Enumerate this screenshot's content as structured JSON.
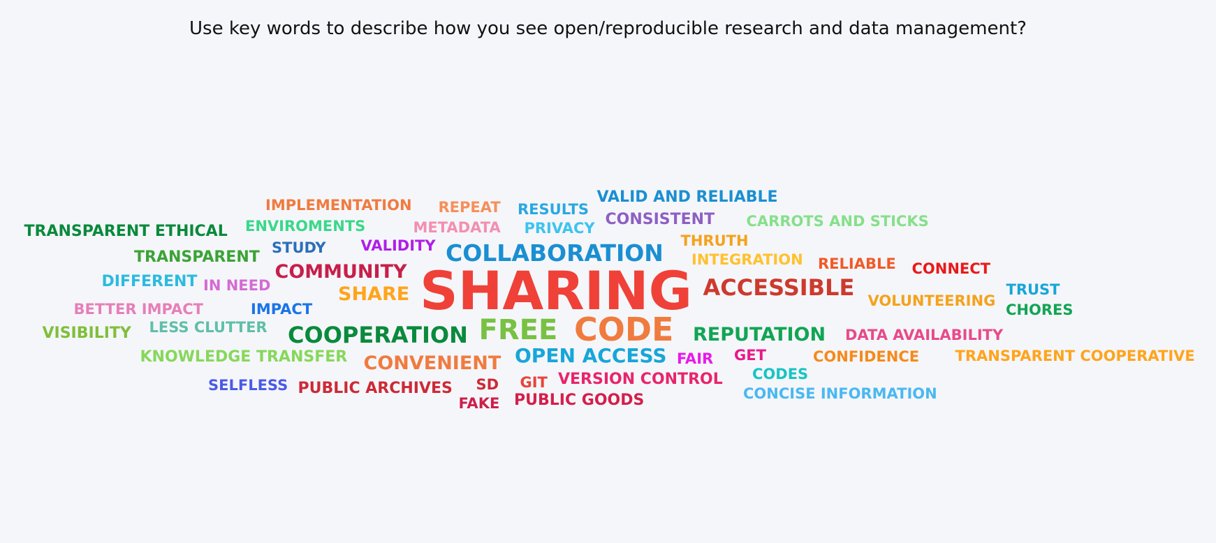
{
  "question": "Use key words to describe how you see open/reproducible research and data management?",
  "words": [
    {
      "text": "SHARING",
      "color": "#ef4138"
    },
    {
      "text": "CODE",
      "color": "#f07b3f"
    },
    {
      "text": "FREE",
      "color": "#78c142"
    },
    {
      "text": "COLLABORATION",
      "color": "#1a8fd1"
    },
    {
      "text": "ACCESSIBLE",
      "color": "#cc3a2d"
    },
    {
      "text": "COOPERATION",
      "color": "#0a8a3c"
    },
    {
      "text": "REPUTATION",
      "color": "#12a554"
    },
    {
      "text": "OPEN ACCESS",
      "color": "#17a6d9"
    },
    {
      "text": "CONVENIENT",
      "color": "#f07b3f"
    },
    {
      "text": "COMMUNITY",
      "color": "#c71f4a"
    },
    {
      "text": "SHARE",
      "color": "#ffa41b"
    },
    {
      "text": "TRANSPARENT ETHICAL",
      "color": "#0a8a3c"
    },
    {
      "text": "TRANSPARENT",
      "color": "#3aa335"
    },
    {
      "text": "DIFFERENT",
      "color": "#2bbbe0"
    },
    {
      "text": "IN NEED",
      "color": "#d46bd4"
    },
    {
      "text": "BETTER IMPACT",
      "color": "#e67fb8"
    },
    {
      "text": "IMPACT",
      "color": "#1a74e8"
    },
    {
      "text": "VISIBILITY",
      "color": "#7fbf3a"
    },
    {
      "text": "LESS CLUTTER",
      "color": "#5fbfa8"
    },
    {
      "text": "KNOWLEDGE TRANSFER",
      "color": "#86d85a"
    },
    {
      "text": "SELFLESS",
      "color": "#4a5ae8"
    },
    {
      "text": "PUBLIC ARCHIVES",
      "color": "#cc2a36"
    },
    {
      "text": "SD",
      "color": "#cc2a36"
    },
    {
      "text": "FAKE",
      "color": "#cc1f4a"
    },
    {
      "text": "GIT",
      "color": "#e8443a"
    },
    {
      "text": "PUBLIC GOODS",
      "color": "#d41f4a"
    },
    {
      "text": "VERSION CONTROL",
      "color": "#e8256a"
    },
    {
      "text": "IMPLEMENTATION",
      "color": "#f07b3f"
    },
    {
      "text": "ENVIROMENTS",
      "color": "#3ad88a"
    },
    {
      "text": "STUDY",
      "color": "#2a6fb8"
    },
    {
      "text": "VALIDITY",
      "color": "#b01ee8"
    },
    {
      "text": "REPEAT",
      "color": "#f5905a"
    },
    {
      "text": "METADATA",
      "color": "#f28fb0"
    },
    {
      "text": "RESULTS",
      "color": "#2aa8e0"
    },
    {
      "text": "PRIVACY",
      "color": "#3ec3f0"
    },
    {
      "text": "VALID AND RELIABLE",
      "color": "#1a8fd1"
    },
    {
      "text": "CONSISTENT",
      "color": "#8e5fc4"
    },
    {
      "text": "CARROTS AND STICKS",
      "color": "#86e08a"
    },
    {
      "text": "THRUTH",
      "color": "#f5a21b"
    },
    {
      "text": "INTEGRATION",
      "color": "#ffc12e"
    },
    {
      "text": "RELIABLE",
      "color": "#f05a28"
    },
    {
      "text": "CONNECT",
      "color": "#e81a1a"
    },
    {
      "text": "VOLUNTEERING",
      "color": "#f5a21b"
    },
    {
      "text": "TRUST",
      "color": "#17a6d9"
    },
    {
      "text": "CHORES",
      "color": "#12a554"
    },
    {
      "text": "DATA AVAILABILITY",
      "color": "#e84a8a"
    },
    {
      "text": "FAIR",
      "color": "#e81ae8"
    },
    {
      "text": "GET",
      "color": "#e81a8a"
    },
    {
      "text": "CONFIDENCE",
      "color": "#f58a1b"
    },
    {
      "text": "TRANSPARENT COOPERATIVE",
      "color": "#ffa41b"
    },
    {
      "text": "CODES",
      "color": "#17c4c4"
    },
    {
      "text": "CONCISE INFORMATION",
      "color": "#4ab8f0"
    }
  ]
}
